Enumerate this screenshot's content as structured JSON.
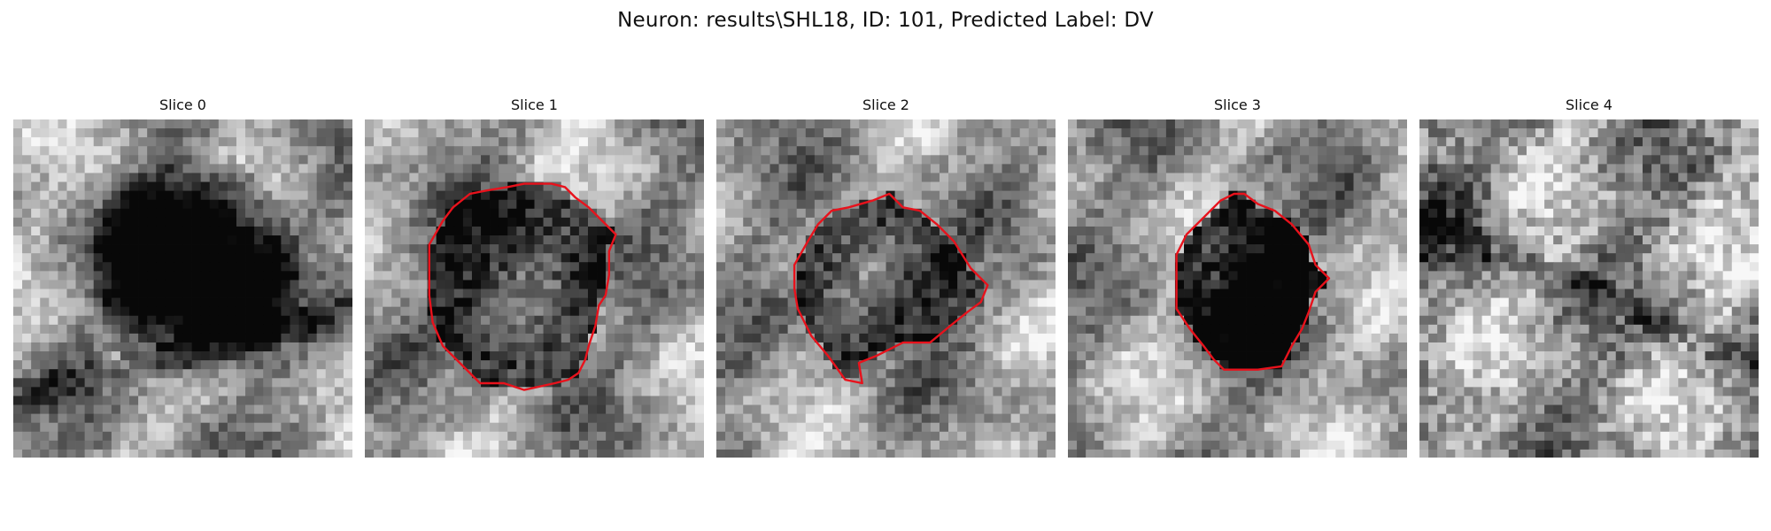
{
  "figure": {
    "title": "Neuron: results\\SHL18, ID: 101, Predicted Label: DV",
    "contour_color": "#e8121c",
    "panels": [
      {
        "label": "Slice 0",
        "texture": "noise-grid-blob",
        "has_contour": false,
        "seed": 1013,
        "blob_darkness": 0.86,
        "contour_points": []
      },
      {
        "label": "Slice 1",
        "texture": "noise-grid-blob",
        "has_contour": true,
        "seed": 2027,
        "blob_darkness": 0.58,
        "contour_points": [
          [
            0.55,
            0.19
          ],
          [
            0.59,
            0.2
          ],
          [
            0.62,
            0.23
          ],
          [
            0.66,
            0.26
          ],
          [
            0.7,
            0.3
          ],
          [
            0.74,
            0.34
          ],
          [
            0.72,
            0.39
          ],
          [
            0.72,
            0.46
          ],
          [
            0.71,
            0.52
          ],
          [
            0.69,
            0.55
          ],
          [
            0.68,
            0.61
          ],
          [
            0.66,
            0.67
          ],
          [
            0.65,
            0.71
          ],
          [
            0.63,
            0.75
          ],
          [
            0.6,
            0.77
          ],
          [
            0.56,
            0.78
          ],
          [
            0.47,
            0.8
          ],
          [
            0.41,
            0.78
          ],
          [
            0.34,
            0.78
          ],
          [
            0.29,
            0.73
          ],
          [
            0.23,
            0.67
          ],
          [
            0.2,
            0.6
          ],
          [
            0.19,
            0.52
          ],
          [
            0.19,
            0.45
          ],
          [
            0.19,
            0.37
          ],
          [
            0.23,
            0.3
          ],
          [
            0.26,
            0.26
          ],
          [
            0.31,
            0.22
          ],
          [
            0.36,
            0.21
          ],
          [
            0.42,
            0.2
          ],
          [
            0.47,
            0.19
          ]
        ]
      },
      {
        "label": "Slice 2",
        "texture": "noise-grid-blob",
        "has_contour": true,
        "seed": 3041,
        "blob_darkness": 0.55,
        "contour_points": [
          [
            0.51,
            0.22
          ],
          [
            0.55,
            0.26
          ],
          [
            0.6,
            0.27
          ],
          [
            0.65,
            0.31
          ],
          [
            0.7,
            0.36
          ],
          [
            0.75,
            0.44
          ],
          [
            0.8,
            0.49
          ],
          [
            0.78,
            0.54
          ],
          [
            0.74,
            0.57
          ],
          [
            0.69,
            0.61
          ],
          [
            0.63,
            0.66
          ],
          [
            0.55,
            0.66
          ],
          [
            0.47,
            0.7
          ],
          [
            0.42,
            0.72
          ],
          [
            0.43,
            0.78
          ],
          [
            0.38,
            0.77
          ],
          [
            0.33,
            0.7
          ],
          [
            0.28,
            0.64
          ],
          [
            0.24,
            0.56
          ],
          [
            0.23,
            0.5
          ],
          [
            0.23,
            0.43
          ],
          [
            0.27,
            0.36
          ],
          [
            0.3,
            0.31
          ],
          [
            0.34,
            0.27
          ],
          [
            0.39,
            0.26
          ],
          [
            0.46,
            0.24
          ]
        ]
      },
      {
        "label": "Slice 3",
        "texture": "noise-grid-blob",
        "has_contour": true,
        "seed": 4057,
        "blob_darkness": 0.93,
        "contour_points": [
          [
            0.52,
            0.22
          ],
          [
            0.56,
            0.25
          ],
          [
            0.61,
            0.27
          ],
          [
            0.66,
            0.31
          ],
          [
            0.71,
            0.37
          ],
          [
            0.73,
            0.43
          ],
          [
            0.77,
            0.47
          ],
          [
            0.73,
            0.51
          ],
          [
            0.71,
            0.57
          ],
          [
            0.69,
            0.62
          ],
          [
            0.66,
            0.67
          ],
          [
            0.63,
            0.73
          ],
          [
            0.56,
            0.74
          ],
          [
            0.46,
            0.74
          ],
          [
            0.43,
            0.71
          ],
          [
            0.4,
            0.67
          ],
          [
            0.36,
            0.62
          ],
          [
            0.32,
            0.56
          ],
          [
            0.32,
            0.49
          ],
          [
            0.32,
            0.4
          ],
          [
            0.35,
            0.34
          ],
          [
            0.4,
            0.29
          ],
          [
            0.45,
            0.24
          ],
          [
            0.49,
            0.22
          ]
        ]
      },
      {
        "label": "Slice 4",
        "texture": "noise-grid",
        "has_contour": false,
        "seed": 5081,
        "blob_darkness": 0.08,
        "contour_points": []
      }
    ]
  }
}
